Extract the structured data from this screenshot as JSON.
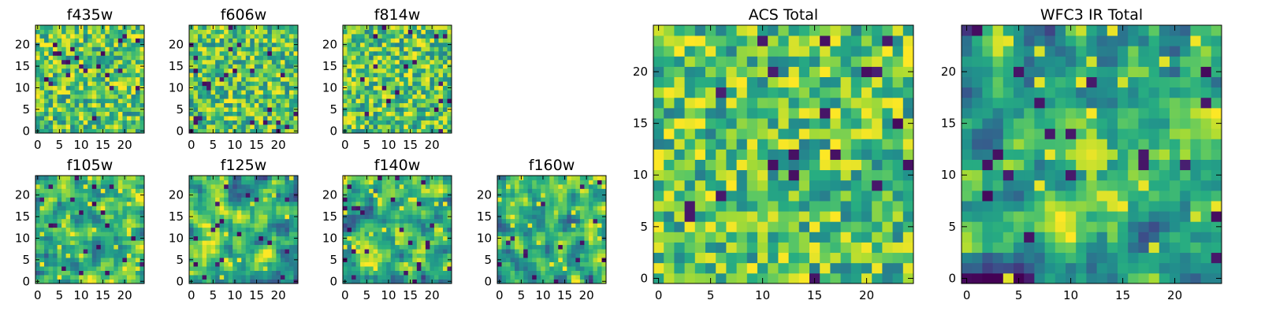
{
  "figure": {
    "background": "#ffffff"
  },
  "colormap": {
    "name": "viridis",
    "low": "#440154",
    "mid": "#21918c",
    "high": "#fde725"
  },
  "chart_data": [
    {
      "type": "heatmap",
      "title": "f435w",
      "xlim": [
        -0.5,
        24.5
      ],
      "ylim": [
        -0.5,
        24.5
      ],
      "xticks": [
        "0",
        "5",
        "10",
        "15",
        "20"
      ],
      "xtick_values": [
        0,
        5,
        10,
        15,
        20
      ],
      "yticks": [
        "0",
        "5",
        "10",
        "15",
        "20"
      ],
      "ytick_values": [
        0,
        5,
        10,
        15,
        20
      ],
      "grid_size": [
        25,
        25
      ],
      "texture": "fine-noise",
      "mean_level": 0.72,
      "seed": 11
    },
    {
      "type": "heatmap",
      "title": "f606w",
      "xlim": [
        -0.5,
        24.5
      ],
      "ylim": [
        -0.5,
        24.5
      ],
      "xticks": [
        "0",
        "5",
        "10",
        "15",
        "20"
      ],
      "xtick_values": [
        0,
        5,
        10,
        15,
        20
      ],
      "yticks": [
        "0",
        "5",
        "10",
        "15",
        "20"
      ],
      "ytick_values": [
        0,
        5,
        10,
        15,
        20
      ],
      "grid_size": [
        25,
        25
      ],
      "texture": "fine-noise",
      "mean_level": 0.72,
      "seed": 23
    },
    {
      "type": "heatmap",
      "title": "f814w",
      "xlim": [
        -0.5,
        24.5
      ],
      "ylim": [
        -0.5,
        24.5
      ],
      "xticks": [
        "0",
        "5",
        "10",
        "15",
        "20"
      ],
      "xtick_values": [
        0,
        5,
        10,
        15,
        20
      ],
      "yticks": [
        "0",
        "5",
        "10",
        "15",
        "20"
      ],
      "ytick_values": [
        0,
        5,
        10,
        15,
        20
      ],
      "grid_size": [
        25,
        25
      ],
      "texture": "fine-noise",
      "mean_level": 0.72,
      "seed": 37
    },
    {
      "type": "heatmap",
      "title": "f105w",
      "xlim": [
        -0.5,
        24.5
      ],
      "ylim": [
        -0.5,
        24.5
      ],
      "xticks": [
        "0",
        "5",
        "10",
        "15",
        "20"
      ],
      "xtick_values": [
        0,
        5,
        10,
        15,
        20
      ],
      "yticks": [
        "0",
        "5",
        "10",
        "15",
        "20"
      ],
      "ytick_values": [
        0,
        5,
        10,
        15,
        20
      ],
      "grid_size": [
        25,
        25
      ],
      "texture": "smooth-noise",
      "mean_level": 0.66,
      "seed": 41
    },
    {
      "type": "heatmap",
      "title": "f125w",
      "xlim": [
        -0.5,
        24.5
      ],
      "ylim": [
        -0.5,
        24.5
      ],
      "xticks": [
        "0",
        "5",
        "10",
        "15",
        "20"
      ],
      "xtick_values": [
        0,
        5,
        10,
        15,
        20
      ],
      "yticks": [
        "0",
        "5",
        "10",
        "15",
        "20"
      ],
      "ytick_values": [
        0,
        5,
        10,
        15,
        20
      ],
      "grid_size": [
        25,
        25
      ],
      "texture": "smooth-noise",
      "mean_level": 0.66,
      "seed": 53
    },
    {
      "type": "heatmap",
      "title": "f140w",
      "xlim": [
        -0.5,
        24.5
      ],
      "ylim": [
        -0.5,
        24.5
      ],
      "xticks": [
        "0",
        "5",
        "10",
        "15",
        "20"
      ],
      "xtick_values": [
        0,
        5,
        10,
        15,
        20
      ],
      "yticks": [
        "0",
        "5",
        "10",
        "15",
        "20"
      ],
      "ytick_values": [
        0,
        5,
        10,
        15,
        20
      ],
      "grid_size": [
        25,
        25
      ],
      "texture": "smooth-noise",
      "mean_level": 0.66,
      "seed": 67
    },
    {
      "type": "heatmap",
      "title": "f160w",
      "xlim": [
        -0.5,
        24.5
      ],
      "ylim": [
        -0.5,
        24.5
      ],
      "xticks": [
        "0",
        "5",
        "10",
        "15",
        "20"
      ],
      "xtick_values": [
        0,
        5,
        10,
        15,
        20
      ],
      "yticks": [
        "0",
        "5",
        "10",
        "15",
        "20"
      ],
      "ytick_values": [
        0,
        5,
        10,
        15,
        20
      ],
      "grid_size": [
        25,
        25
      ],
      "texture": "smooth-noise",
      "mean_level": 0.66,
      "seed": 79
    },
    {
      "type": "heatmap",
      "title": "ACS Total",
      "xlim": [
        -0.5,
        24.5
      ],
      "ylim": [
        -0.5,
        24.5
      ],
      "xticks": [
        "0",
        "5",
        "10",
        "15",
        "20"
      ],
      "xtick_values": [
        0,
        5,
        10,
        15,
        20
      ],
      "yticks": [
        "0",
        "5",
        "10",
        "15",
        "20"
      ],
      "ytick_values": [
        0,
        5,
        10,
        15,
        20
      ],
      "grid_size": [
        25,
        25
      ],
      "texture": "fine-noise",
      "mean_level": 0.72,
      "seed": 83
    },
    {
      "type": "heatmap",
      "title": "WFC3 IR Total",
      "xlim": [
        -0.5,
        24.5
      ],
      "ylim": [
        -0.5,
        24.5
      ],
      "xticks": [
        "0",
        "5",
        "10",
        "15",
        "20"
      ],
      "xtick_values": [
        0,
        5,
        10,
        15,
        20
      ],
      "yticks": [
        "0",
        "5",
        "10",
        "15",
        "20"
      ],
      "ytick_values": [
        0,
        5,
        10,
        15,
        20
      ],
      "grid_size": [
        25,
        25
      ],
      "texture": "smooth-noise",
      "mean_level": 0.58,
      "seed": 97,
      "bright_blob_center": [
        12,
        12
      ]
    }
  ]
}
